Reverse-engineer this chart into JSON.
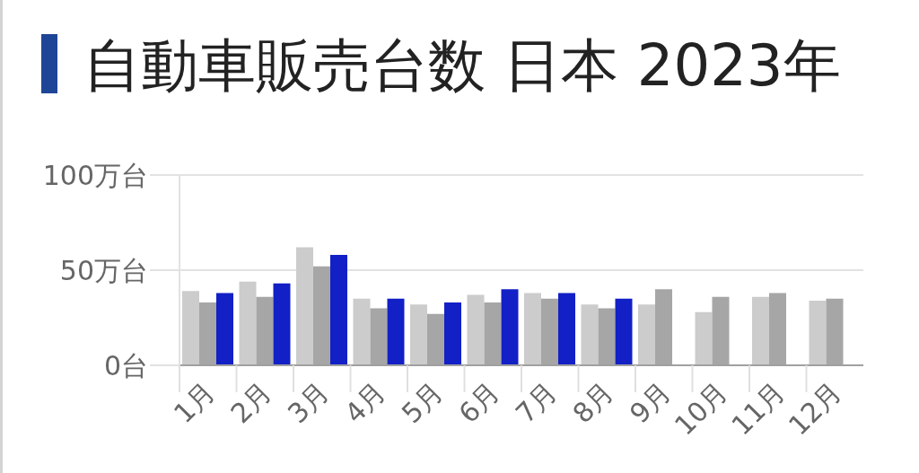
{
  "chart_data": {
    "type": "bar",
    "title": "自動車販売台数 日本 2023年",
    "categories": [
      "1月",
      "2月",
      "3月",
      "4月",
      "5月",
      "6月",
      "7月",
      "8月",
      "9月",
      "10月",
      "11月",
      "12月"
    ],
    "series": [
      {
        "color": "#cccccc",
        "values": [
          39,
          44,
          62,
          35,
          32,
          37,
          38,
          32,
          32,
          28,
          36,
          34
        ]
      },
      {
        "color": "#a6a6a6",
        "values": [
          33,
          36,
          52,
          30,
          27,
          33,
          35,
          30,
          40,
          36,
          38,
          35
        ]
      },
      {
        "color": "#1220c6",
        "values": [
          38,
          43,
          58,
          35,
          33,
          40,
          38,
          35,
          null,
          null,
          null,
          null
        ]
      }
    ],
    "ylim": [
      0,
      100
    ],
    "yticks": [
      {
        "value": 0,
        "label": "0台"
      },
      {
        "value": 50,
        "label": "50万台"
      },
      {
        "value": 100,
        "label": "100万台"
      }
    ],
    "grid": "y"
  }
}
